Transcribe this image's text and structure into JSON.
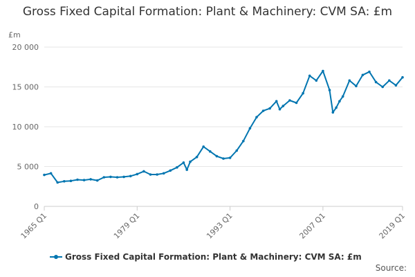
{
  "chart_data": {
    "type": "line",
    "title": "Gross Fixed Capital Formation: Plant & Machinery: CVM SA: £m",
    "ylabel": "£m",
    "xlabel": "",
    "ylim": [
      0,
      20000
    ],
    "yticks": [
      "0",
      "5 000",
      "10 000",
      "15 000",
      "20 000"
    ],
    "xticks": [
      "1965 Q1",
      "1979 Q1",
      "1993 Q1",
      "2007 Q1",
      "2019 Q1"
    ],
    "grid": true,
    "legend_position": "bottom",
    "x": [
      "1965 Q1",
      "1966 Q1",
      "1967 Q1",
      "1968 Q1",
      "1969 Q1",
      "1970 Q1",
      "1971 Q1",
      "1972 Q1",
      "1973 Q1",
      "1974 Q1",
      "1975 Q1",
      "1976 Q1",
      "1977 Q1",
      "1978 Q1",
      "1979 Q1",
      "1980 Q1",
      "1981 Q1",
      "1982 Q1",
      "1983 Q1",
      "1984 Q1",
      "1985 Q1",
      "1986 Q1",
      "1986 Q3",
      "1987 Q1",
      "1988 Q1",
      "1989 Q1",
      "1990 Q1",
      "1991 Q1",
      "1992 Q1",
      "1993 Q1",
      "1994 Q1",
      "1995 Q1",
      "1996 Q1",
      "1997 Q1",
      "1998 Q1",
      "1999 Q1",
      "2000 Q1",
      "2000 Q3",
      "2001 Q1",
      "2002 Q1",
      "2003 Q1",
      "2004 Q1",
      "2005 Q1",
      "2006 Q1",
      "2007 Q1",
      "2008 Q1",
      "2008 Q3",
      "2009 Q1",
      "2009 Q3",
      "2010 Q1",
      "2011 Q1",
      "2012 Q1",
      "2013 Q1",
      "2014 Q1",
      "2015 Q1",
      "2016 Q1",
      "2017 Q1",
      "2018 Q1",
      "2019 Q1"
    ],
    "series": [
      {
        "name": "Gross Fixed Capital Formation: Plant & Machinery: CVM SA: £m",
        "color": "#0075b0",
        "values": [
          3950,
          4150,
          3000,
          3150,
          3200,
          3350,
          3300,
          3400,
          3250,
          3650,
          3700,
          3650,
          3700,
          3800,
          4050,
          4400,
          4000,
          4000,
          4150,
          4500,
          4900,
          5500,
          4600,
          5600,
          6200,
          7500,
          6900,
          6300,
          6000,
          6100,
          7000,
          8200,
          9800,
          11200,
          12000,
          12300,
          13200,
          12200,
          12600,
          13300,
          13000,
          14200,
          16400,
          15800,
          17000,
          14600,
          11800,
          12400,
          13200,
          13800,
          15800,
          15100,
          16500,
          16900,
          15600,
          15000,
          15800,
          15200,
          16200
        ]
      }
    ]
  },
  "legend": {
    "label": "Gross Fixed Capital Formation: Plant & Machinery: CVM SA: £m"
  },
  "source_label": "Source:"
}
